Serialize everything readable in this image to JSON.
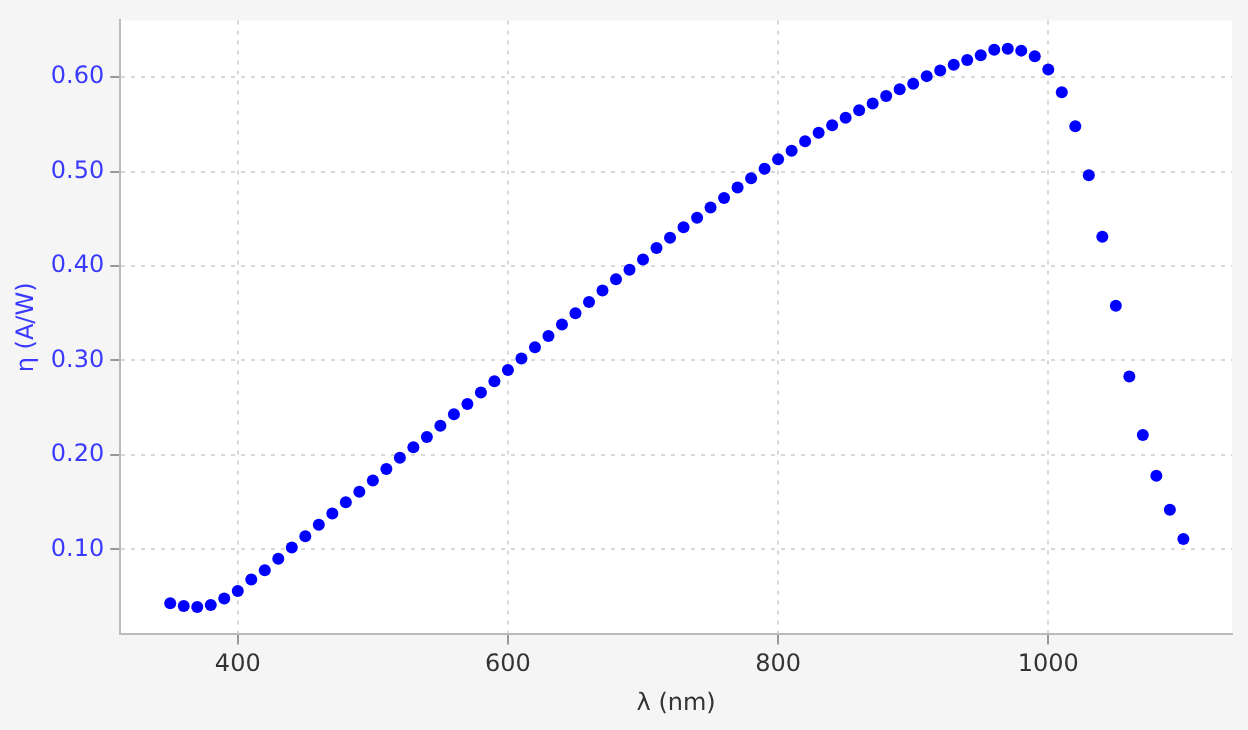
{
  "chart_data": {
    "type": "scatter",
    "xlabel": "λ (nm)",
    "ylabel": "η (A/W)",
    "x": [
      350,
      360,
      370,
      380,
      390,
      400,
      410,
      420,
      430,
      440,
      450,
      460,
      470,
      480,
      490,
      500,
      510,
      520,
      530,
      540,
      550,
      560,
      570,
      580,
      590,
      600,
      610,
      620,
      630,
      640,
      650,
      660,
      670,
      680,
      690,
      700,
      710,
      720,
      730,
      740,
      750,
      760,
      770,
      780,
      790,
      800,
      810,
      820,
      830,
      840,
      850,
      860,
      870,
      880,
      890,
      900,
      910,
      920,
      930,
      940,
      950,
      960,
      970,
      980,
      990,
      1000,
      1010,
      1020,
      1030,
      1040,
      1050,
      1060,
      1070,
      1080,
      1090,
      1100
    ],
    "series": [
      {
        "color": "#0000ff",
        "values": [
          0.043,
          0.04,
          0.039,
          0.041,
          0.048,
          0.056,
          0.068,
          0.078,
          0.09,
          0.102,
          0.114,
          0.126,
          0.138,
          0.15,
          0.161,
          0.173,
          0.185,
          0.197,
          0.208,
          0.219,
          0.231,
          0.243,
          0.254,
          0.266,
          0.278,
          0.29,
          0.302,
          0.314,
          0.326,
          0.338,
          0.35,
          0.362,
          0.374,
          0.386,
          0.396,
          0.407,
          0.419,
          0.43,
          0.441,
          0.451,
          0.462,
          0.472,
          0.483,
          0.493,
          0.503,
          0.513,
          0.522,
          0.532,
          0.541,
          0.549,
          0.557,
          0.565,
          0.572,
          0.58,
          0.587,
          0.593,
          0.601,
          0.607,
          0.613,
          0.618,
          0.623,
          0.629,
          0.63,
          0.628,
          0.622,
          0.608,
          0.584,
          0.548,
          0.496,
          0.431,
          0.358,
          0.283,
          0.221,
          0.178,
          0.142,
          0.111
        ]
      }
    ],
    "xlim": [
      313,
      1136
    ],
    "ylim": [
      0.01,
      0.66
    ],
    "xticks": [
      400,
      600,
      800,
      1000
    ],
    "yticks": [
      {
        "value": 0.1,
        "label": "0.10"
      },
      {
        "value": 0.2,
        "label": "0.20"
      },
      {
        "value": 0.3,
        "label": "0.30"
      },
      {
        "value": 0.4,
        "label": "0.40"
      },
      {
        "value": 0.5,
        "label": "0.50"
      },
      {
        "value": 0.6,
        "label": "0.60"
      }
    ],
    "grid": true,
    "legend": false,
    "marker": "circle"
  }
}
